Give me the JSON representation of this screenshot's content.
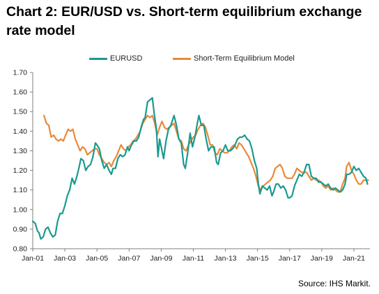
{
  "chart_data": {
    "type": "line",
    "title": "Chart 2: EUR/USD vs. Short-term equilibrium exchange rate model",
    "xlabel": "",
    "ylabel": "",
    "ylim": [
      0.8,
      1.7
    ],
    "yticks": [
      "0.80",
      "0.90",
      "1.00",
      "1.10",
      "1.20",
      "1.30",
      "1.40",
      "1.50",
      "1.60",
      "1.70"
    ],
    "xlim": [
      2001.0,
      2022.0
    ],
    "xticks": [
      {
        "label": "Jan-01",
        "x": 2001.0
      },
      {
        "label": "Jan-03",
        "x": 2003.0
      },
      {
        "label": "Jan-05",
        "x": 2005.0
      },
      {
        "label": "Jan-07",
        "x": 2007.0
      },
      {
        "label": "Jan-09",
        "x": 2009.0
      },
      {
        "label": "Jan-11",
        "x": 2011.0
      },
      {
        "label": "Jan-13",
        "x": 2013.0
      },
      {
        "label": "Jan-15",
        "x": 2015.0
      },
      {
        "label": "Jan-17",
        "x": 2017.0
      },
      {
        "label": "Jan-19",
        "x": 2019.0
      },
      {
        "label": "Jan-21",
        "x": 2021.0
      }
    ],
    "grid": false,
    "legend_position": "top",
    "series": [
      {
        "name": "EURUSD",
        "color": "#1a9a8e",
        "points": [
          [
            2001.0,
            0.94
          ],
          [
            2001.15,
            0.93
          ],
          [
            2001.3,
            0.89
          ],
          [
            2001.4,
            0.88
          ],
          [
            2001.5,
            0.85
          ],
          [
            2001.65,
            0.86
          ],
          [
            2001.8,
            0.9
          ],
          [
            2001.95,
            0.91
          ],
          [
            2002.1,
            0.88
          ],
          [
            2002.25,
            0.86
          ],
          [
            2002.4,
            0.87
          ],
          [
            2002.55,
            0.94
          ],
          [
            2002.7,
            0.98
          ],
          [
            2002.85,
            0.98
          ],
          [
            2003.0,
            1.02
          ],
          [
            2003.15,
            1.07
          ],
          [
            2003.3,
            1.1
          ],
          [
            2003.45,
            1.16
          ],
          [
            2003.6,
            1.13
          ],
          [
            2003.75,
            1.17
          ],
          [
            2003.9,
            1.22
          ],
          [
            2004.0,
            1.26
          ],
          [
            2004.15,
            1.25
          ],
          [
            2004.3,
            1.2
          ],
          [
            2004.45,
            1.22
          ],
          [
            2004.6,
            1.23
          ],
          [
            2004.75,
            1.27
          ],
          [
            2004.9,
            1.34
          ],
          [
            2005.0,
            1.33
          ],
          [
            2005.15,
            1.31
          ],
          [
            2005.3,
            1.25
          ],
          [
            2005.45,
            1.21
          ],
          [
            2005.6,
            1.23
          ],
          [
            2005.75,
            1.2
          ],
          [
            2005.9,
            1.18
          ],
          [
            2006.0,
            1.21
          ],
          [
            2006.15,
            1.21
          ],
          [
            2006.3,
            1.26
          ],
          [
            2006.45,
            1.28
          ],
          [
            2006.6,
            1.27
          ],
          [
            2006.75,
            1.28
          ],
          [
            2006.9,
            1.32
          ],
          [
            2007.0,
            1.3
          ],
          [
            2007.15,
            1.33
          ],
          [
            2007.3,
            1.35
          ],
          [
            2007.45,
            1.35
          ],
          [
            2007.6,
            1.37
          ],
          [
            2007.75,
            1.42
          ],
          [
            2007.9,
            1.46
          ],
          [
            2008.0,
            1.47
          ],
          [
            2008.15,
            1.55
          ],
          [
            2008.3,
            1.56
          ],
          [
            2008.45,
            1.57
          ],
          [
            2008.55,
            1.5
          ],
          [
            2008.7,
            1.41
          ],
          [
            2008.8,
            1.27
          ],
          [
            2008.9,
            1.36
          ],
          [
            2009.0,
            1.32
          ],
          [
            2009.15,
            1.26
          ],
          [
            2009.3,
            1.35
          ],
          [
            2009.45,
            1.41
          ],
          [
            2009.6,
            1.43
          ],
          [
            2009.8,
            1.48
          ],
          [
            2009.95,
            1.43
          ],
          [
            2010.1,
            1.36
          ],
          [
            2010.25,
            1.34
          ],
          [
            2010.4,
            1.23
          ],
          [
            2010.5,
            1.21
          ],
          [
            2010.65,
            1.29
          ],
          [
            2010.8,
            1.39
          ],
          [
            2010.95,
            1.32
          ],
          [
            2011.1,
            1.37
          ],
          [
            2011.25,
            1.44
          ],
          [
            2011.35,
            1.48
          ],
          [
            2011.5,
            1.43
          ],
          [
            2011.65,
            1.43
          ],
          [
            2011.8,
            1.36
          ],
          [
            2011.95,
            1.3
          ],
          [
            2012.1,
            1.32
          ],
          [
            2012.3,
            1.32
          ],
          [
            2012.45,
            1.24
          ],
          [
            2012.55,
            1.23
          ],
          [
            2012.7,
            1.29
          ],
          [
            2012.85,
            1.3
          ],
          [
            2013.0,
            1.33
          ],
          [
            2013.15,
            1.3
          ],
          [
            2013.3,
            1.3
          ],
          [
            2013.45,
            1.31
          ],
          [
            2013.6,
            1.33
          ],
          [
            2013.75,
            1.36
          ],
          [
            2013.9,
            1.37
          ],
          [
            2014.05,
            1.37
          ],
          [
            2014.2,
            1.38
          ],
          [
            2014.35,
            1.36
          ],
          [
            2014.5,
            1.35
          ],
          [
            2014.65,
            1.31
          ],
          [
            2014.8,
            1.25
          ],
          [
            2014.95,
            1.21
          ],
          [
            2015.05,
            1.13
          ],
          [
            2015.15,
            1.08
          ],
          [
            2015.3,
            1.12
          ],
          [
            2015.45,
            1.11
          ],
          [
            2015.6,
            1.1
          ],
          [
            2015.75,
            1.12
          ],
          [
            2015.9,
            1.07
          ],
          [
            2016.0,
            1.09
          ],
          [
            2016.15,
            1.13
          ],
          [
            2016.3,
            1.13
          ],
          [
            2016.45,
            1.11
          ],
          [
            2016.6,
            1.12
          ],
          [
            2016.75,
            1.1
          ],
          [
            2016.9,
            1.06
          ],
          [
            2017.0,
            1.06
          ],
          [
            2017.15,
            1.07
          ],
          [
            2017.3,
            1.12
          ],
          [
            2017.45,
            1.15
          ],
          [
            2017.6,
            1.18
          ],
          [
            2017.75,
            1.17
          ],
          [
            2017.9,
            1.19
          ],
          [
            2018.05,
            1.23
          ],
          [
            2018.2,
            1.23
          ],
          [
            2018.35,
            1.17
          ],
          [
            2018.5,
            1.16
          ],
          [
            2018.65,
            1.16
          ],
          [
            2018.8,
            1.14
          ],
          [
            2018.95,
            1.14
          ],
          [
            2019.1,
            1.13
          ],
          [
            2019.25,
            1.12
          ],
          [
            2019.4,
            1.13
          ],
          [
            2019.55,
            1.11
          ],
          [
            2019.7,
            1.1
          ],
          [
            2019.85,
            1.11
          ],
          [
            2020.0,
            1.1
          ],
          [
            2020.15,
            1.09
          ],
          [
            2020.3,
            1.1
          ],
          [
            2020.45,
            1.13
          ],
          [
            2020.55,
            1.18
          ],
          [
            2020.7,
            1.18
          ],
          [
            2020.85,
            1.19
          ],
          [
            2021.0,
            1.22
          ],
          [
            2021.15,
            1.2
          ],
          [
            2021.3,
            1.21
          ],
          [
            2021.45,
            1.19
          ],
          [
            2021.6,
            1.17
          ],
          [
            2021.75,
            1.16
          ],
          [
            2021.85,
            1.13
          ]
        ]
      },
      {
        "name": "Short-Term Equilibrium Model",
        "color": "#e8893a",
        "points": [
          [
            2001.7,
            1.48
          ],
          [
            2001.85,
            1.44
          ],
          [
            2002.0,
            1.43
          ],
          [
            2002.15,
            1.37
          ],
          [
            2002.3,
            1.38
          ],
          [
            2002.45,
            1.36
          ],
          [
            2002.6,
            1.35
          ],
          [
            2002.75,
            1.36
          ],
          [
            2002.9,
            1.35
          ],
          [
            2003.05,
            1.38
          ],
          [
            2003.2,
            1.41
          ],
          [
            2003.35,
            1.4
          ],
          [
            2003.5,
            1.41
          ],
          [
            2003.65,
            1.36
          ],
          [
            2003.8,
            1.33
          ],
          [
            2003.95,
            1.3
          ],
          [
            2004.1,
            1.32
          ],
          [
            2004.25,
            1.31
          ],
          [
            2004.4,
            1.28
          ],
          [
            2004.55,
            1.29
          ],
          [
            2004.7,
            1.3
          ],
          [
            2004.85,
            1.31
          ],
          [
            2005.0,
            1.31
          ],
          [
            2005.15,
            1.28
          ],
          [
            2005.3,
            1.26
          ],
          [
            2005.45,
            1.24
          ],
          [
            2005.6,
            1.23
          ],
          [
            2005.75,
            1.24
          ],
          [
            2005.9,
            1.22
          ],
          [
            2006.05,
            1.25
          ],
          [
            2006.2,
            1.27
          ],
          [
            2006.35,
            1.3
          ],
          [
            2006.5,
            1.33
          ],
          [
            2006.65,
            1.31
          ],
          [
            2006.8,
            1.3
          ],
          [
            2006.95,
            1.32
          ],
          [
            2007.1,
            1.33
          ],
          [
            2007.25,
            1.35
          ],
          [
            2007.4,
            1.36
          ],
          [
            2007.55,
            1.38
          ],
          [
            2007.7,
            1.4
          ],
          [
            2007.85,
            1.44
          ],
          [
            2008.0,
            1.46
          ],
          [
            2008.15,
            1.48
          ],
          [
            2008.3,
            1.47
          ],
          [
            2008.45,
            1.48
          ],
          [
            2008.6,
            1.44
          ],
          [
            2008.75,
            1.38
          ],
          [
            2008.9,
            1.42
          ],
          [
            2009.05,
            1.45
          ],
          [
            2009.2,
            1.42
          ],
          [
            2009.35,
            1.41
          ],
          [
            2009.5,
            1.42
          ],
          [
            2009.65,
            1.43
          ],
          [
            2009.8,
            1.44
          ],
          [
            2009.95,
            1.4
          ],
          [
            2010.1,
            1.36
          ],
          [
            2010.25,
            1.35
          ],
          [
            2010.4,
            1.31
          ],
          [
            2010.55,
            1.3
          ],
          [
            2010.7,
            1.33
          ],
          [
            2010.85,
            1.35
          ],
          [
            2011.0,
            1.37
          ],
          [
            2011.15,
            1.38
          ],
          [
            2011.3,
            1.41
          ],
          [
            2011.45,
            1.43
          ],
          [
            2011.6,
            1.44
          ],
          [
            2011.75,
            1.42
          ],
          [
            2011.9,
            1.38
          ],
          [
            2012.05,
            1.33
          ],
          [
            2012.2,
            1.33
          ],
          [
            2012.35,
            1.29
          ],
          [
            2012.5,
            1.28
          ],
          [
            2012.65,
            1.31
          ],
          [
            2012.8,
            1.3
          ],
          [
            2012.95,
            1.29
          ],
          [
            2013.1,
            1.29
          ],
          [
            2013.25,
            1.3
          ],
          [
            2013.4,
            1.32
          ],
          [
            2013.55,
            1.33
          ],
          [
            2013.7,
            1.31
          ],
          [
            2013.85,
            1.34
          ],
          [
            2014.0,
            1.33
          ],
          [
            2014.15,
            1.31
          ],
          [
            2014.3,
            1.29
          ],
          [
            2014.45,
            1.27
          ],
          [
            2014.6,
            1.24
          ],
          [
            2014.75,
            1.21
          ],
          [
            2014.9,
            1.17
          ],
          [
            2015.05,
            1.12
          ],
          [
            2015.2,
            1.1
          ],
          [
            2015.35,
            1.12
          ],
          [
            2015.5,
            1.13
          ],
          [
            2015.65,
            1.14
          ],
          [
            2015.8,
            1.15
          ],
          [
            2015.95,
            1.17
          ],
          [
            2016.1,
            1.21
          ],
          [
            2016.25,
            1.22
          ],
          [
            2016.4,
            1.23
          ],
          [
            2016.55,
            1.21
          ],
          [
            2016.7,
            1.17
          ],
          [
            2016.85,
            1.16
          ],
          [
            2017.0,
            1.16
          ],
          [
            2017.15,
            1.16
          ],
          [
            2017.3,
            1.18
          ],
          [
            2017.45,
            1.21
          ],
          [
            2017.6,
            1.2
          ],
          [
            2017.75,
            1.19
          ],
          [
            2017.9,
            1.19
          ],
          [
            2018.05,
            1.19
          ],
          [
            2018.2,
            1.17
          ],
          [
            2018.35,
            1.15
          ],
          [
            2018.5,
            1.16
          ],
          [
            2018.65,
            1.15
          ],
          [
            2018.8,
            1.15
          ],
          [
            2018.95,
            1.14
          ],
          [
            2019.1,
            1.12
          ],
          [
            2019.25,
            1.11
          ],
          [
            2019.4,
            1.12
          ],
          [
            2019.55,
            1.1
          ],
          [
            2019.7,
            1.11
          ],
          [
            2019.85,
            1.1
          ],
          [
            2020.0,
            1.09
          ],
          [
            2020.15,
            1.09
          ],
          [
            2020.3,
            1.13
          ],
          [
            2020.45,
            1.16
          ],
          [
            2020.55,
            1.22
          ],
          [
            2020.7,
            1.24
          ],
          [
            2020.85,
            1.2
          ],
          [
            2021.0,
            1.18
          ],
          [
            2021.15,
            1.15
          ],
          [
            2021.3,
            1.13
          ],
          [
            2021.45,
            1.13
          ],
          [
            2021.6,
            1.15
          ],
          [
            2021.75,
            1.15
          ],
          [
            2021.9,
            1.15
          ]
        ]
      }
    ],
    "source": "Source: IHS Markit."
  }
}
